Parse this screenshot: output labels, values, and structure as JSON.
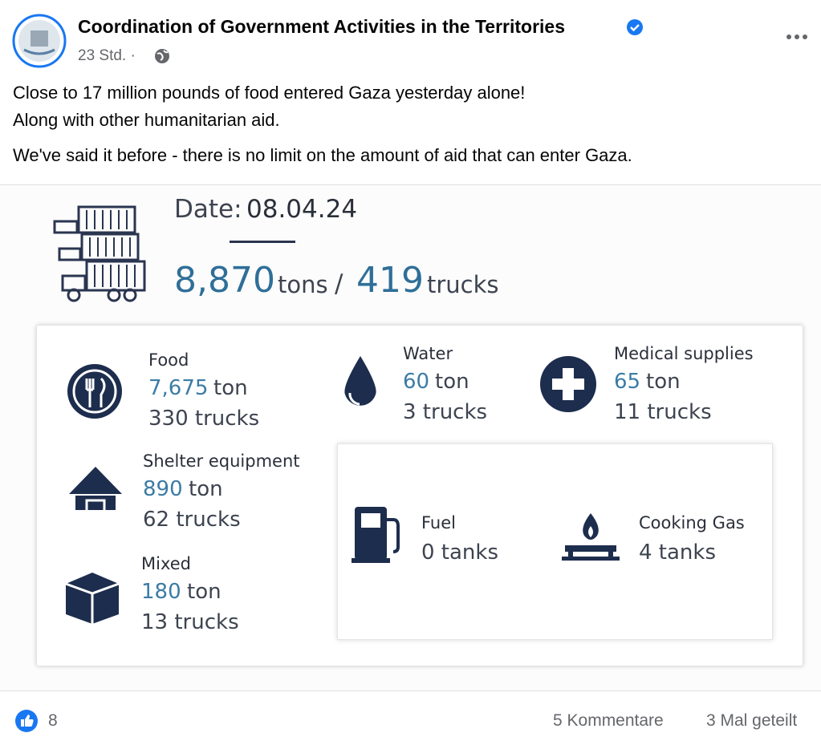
{
  "header": {
    "author": "Coordination of Government Activities in the Territories",
    "time": "23 Std. ·"
  },
  "post_text": [
    "Close to 17 million pounds of food entered Gaza yesterday alone!",
    "Along with other humanitarian aid.",
    "We've said it before - there is no limit on the amount of aid that can enter Gaza."
  ],
  "infographic": {
    "date_label": "Date:",
    "date": "08.04.24",
    "total_tons": "8,870",
    "tons_unit": "tons",
    "slash": "/",
    "total_trucks": "419",
    "trucks_unit": "trucks",
    "items": [
      {
        "name": "Food",
        "amount": "7,675",
        "unit": "ton",
        "trucks": "330 trucks"
      },
      {
        "name": "Water",
        "amount": "60",
        "unit": "ton",
        "trucks": "3 trucks"
      },
      {
        "name": "Medical supplies",
        "amount": "65",
        "unit": "ton",
        "trucks": "11 trucks"
      },
      {
        "name": "Shelter equipment",
        "amount": "890",
        "unit": "ton",
        "trucks": "62 trucks"
      },
      {
        "name": "Mixed",
        "amount": "180",
        "unit": "ton",
        "trucks": "13 trucks"
      }
    ],
    "fuel": [
      {
        "name": "Fuel",
        "amount": "0 tanks"
      },
      {
        "name": "Cooking Gas",
        "amount": "4 tanks"
      }
    ]
  },
  "footer": {
    "likes": "8",
    "comments": "5 Kommentare",
    "shares": "3 Mal geteilt"
  }
}
